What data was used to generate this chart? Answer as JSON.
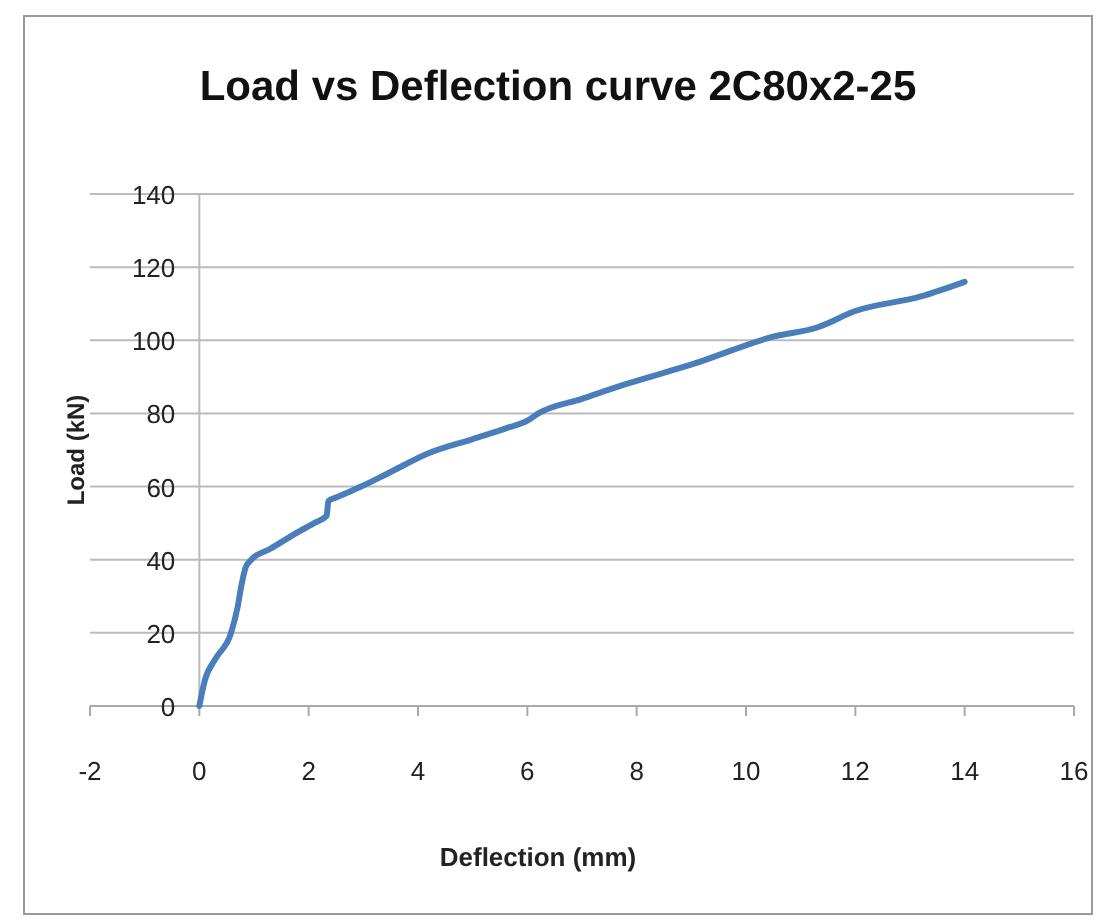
{
  "chart_data": {
    "type": "line",
    "title": "Load vs Deflection curve 2C80x2-25",
    "xlabel": "Deflection (mm)",
    "ylabel": "Load (kN)",
    "xlim": [
      -2,
      16
    ],
    "xticks": [
      -2,
      0,
      2,
      4,
      6,
      8,
      10,
      12,
      14,
      16
    ],
    "ylim": [
      0,
      140
    ],
    "yticks": [
      0,
      20,
      40,
      60,
      80,
      100,
      120,
      140
    ],
    "grid": "y",
    "marker": "none",
    "line_style": "solid",
    "series": [
      {
        "color": "#4a7ebb",
        "x": [
          0,
          0.1,
          0.3,
          0.58,
          0.7,
          0.77,
          0.85,
          0.95,
          1.3,
          1.74,
          2.1,
          2.33,
          2.36,
          2.5,
          2.96,
          3.5,
          4.17,
          5.0,
          5.62,
          6.0,
          6.2,
          7.0,
          7.8,
          9.05,
          10.5,
          11.3,
          12,
          13.2,
          14.0
        ],
        "values": [
          0,
          7,
          13,
          20,
          27,
          33,
          38,
          40,
          43,
          47,
          50,
          52,
          56,
          57,
          60,
          64,
          69,
          73,
          76,
          78,
          80,
          84,
          88,
          93.6,
          101,
          103.5,
          108,
          112,
          116
        ]
      }
    ]
  }
}
